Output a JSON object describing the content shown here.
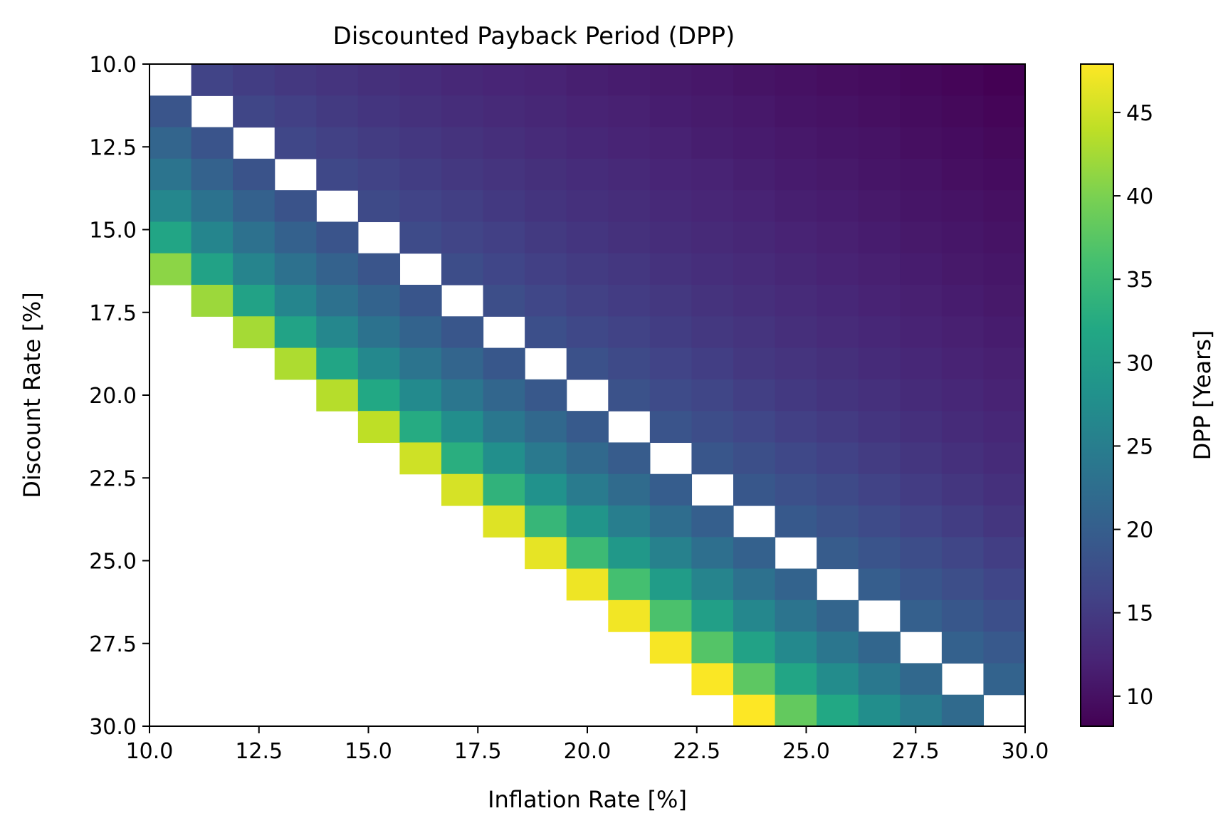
{
  "chart_data": {
    "type": "heatmap",
    "title": "Discounted Payback Period (DPP)",
    "xlabel": "Inflation Rate [%]",
    "ylabel": "Discount Rate [%]",
    "xlim": [
      10.0,
      30.0
    ],
    "ylim": [
      10.0,
      30.0
    ],
    "y_inverted": true,
    "x_ticks": [
      "10.0",
      "12.5",
      "15.0",
      "17.5",
      "20.0",
      "22.5",
      "25.0",
      "27.5",
      "30.0"
    ],
    "y_ticks": [
      "10.0",
      "12.5",
      "15.0",
      "17.5",
      "20.0",
      "22.5",
      "25.0",
      "27.5",
      "30.0"
    ],
    "grid": false,
    "colormap": "viridis",
    "colorbar": {
      "label": "DPP [Years]",
      "min": 8.2,
      "max": 47.9,
      "ticks": [
        "10",
        "15",
        "20",
        "25",
        "30",
        "35",
        "40",
        "45"
      ]
    },
    "matrix": [
      [
        null,
        16.2,
        15.3,
        14.7,
        14.1,
        13.6,
        13.2,
        12.7,
        12.3,
        12.0,
        11.6,
        11.3,
        11.0,
        10.7,
        10.3,
        10.0,
        9.7,
        9.4,
        9.0,
        8.7,
        8.2
      ],
      [
        18.6,
        null,
        16.4,
        15.6,
        14.9,
        14.3,
        13.8,
        13.3,
        12.9,
        12.5,
        12.1,
        11.8,
        11.4,
        11.1,
        10.8,
        10.4,
        10.1,
        9.8,
        9.4,
        9.1,
        8.7
      ],
      [
        21.0,
        18.5,
        null,
        16.6,
        15.8,
        15.1,
        14.5,
        14.0,
        13.5,
        13.0,
        12.6,
        12.2,
        11.9,
        11.5,
        11.2,
        10.8,
        10.5,
        10.2,
        9.8,
        9.5,
        9.1
      ],
      [
        23.5,
        20.6,
        18.4,
        null,
        16.8,
        16.0,
        15.3,
        14.7,
        14.1,
        13.6,
        13.2,
        12.8,
        12.3,
        12.0,
        11.6,
        11.2,
        10.9,
        10.5,
        10.2,
        9.8,
        9.5
      ],
      [
        26.5,
        23.2,
        20.5,
        18.4,
        null,
        17.0,
        16.2,
        15.5,
        14.8,
        14.2,
        13.7,
        13.3,
        12.8,
        12.4,
        12.0,
        11.6,
        11.3,
        10.9,
        10.5,
        10.2,
        9.9
      ],
      [
        31.5,
        26.2,
        23.0,
        20.5,
        18.5,
        null,
        17.2,
        16.3,
        15.6,
        14.9,
        14.3,
        13.8,
        13.3,
        12.9,
        12.5,
        12.1,
        11.7,
        11.3,
        10.9,
        10.6,
        10.2
      ],
      [
        41.0,
        31.0,
        26.0,
        22.9,
        20.6,
        18.6,
        null,
        17.4,
        16.5,
        15.7,
        15.0,
        14.5,
        13.9,
        13.4,
        13.0,
        12.5,
        12.1,
        11.7,
        11.3,
        10.9,
        10.6
      ],
      [
        null,
        42.0,
        31.0,
        26.2,
        23.0,
        20.7,
        18.7,
        null,
        17.6,
        16.6,
        15.8,
        15.2,
        14.6,
        14.0,
        13.5,
        13.0,
        12.6,
        12.1,
        11.7,
        11.3,
        10.9
      ],
      [
        null,
        null,
        42.5,
        31.2,
        26.5,
        23.2,
        20.8,
        18.8,
        null,
        17.8,
        16.8,
        16.0,
        15.3,
        14.6,
        14.1,
        13.5,
        13.0,
        12.6,
        12.1,
        11.7,
        11.3
      ],
      [
        null,
        null,
        null,
        43.0,
        31.5,
        26.7,
        23.4,
        21.0,
        19.0,
        null,
        18.0,
        17.0,
        16.2,
        15.4,
        14.7,
        14.1,
        13.6,
        13.1,
        12.6,
        12.1,
        11.7
      ],
      [
        null,
        null,
        null,
        null,
        43.5,
        32.0,
        27.0,
        23.7,
        21.2,
        19.1,
        null,
        18.2,
        17.2,
        16.4,
        15.5,
        14.8,
        14.2,
        13.7,
        13.1,
        12.6,
        12.1
      ],
      [
        null,
        null,
        null,
        null,
        null,
        44.0,
        32.5,
        27.5,
        24.0,
        21.5,
        19.4,
        null,
        18.5,
        17.5,
        16.6,
        15.7,
        15.0,
        14.3,
        13.7,
        13.1,
        12.6
      ],
      [
        null,
        null,
        null,
        null,
        null,
        null,
        45.0,
        33.0,
        27.8,
        24.3,
        21.7,
        19.6,
        null,
        18.8,
        17.7,
        16.8,
        15.9,
        15.1,
        14.4,
        13.7,
        13.1
      ],
      [
        null,
        null,
        null,
        null,
        null,
        null,
        null,
        45.5,
        33.8,
        28.2,
        24.6,
        22.0,
        19.8,
        null,
        19.0,
        17.9,
        17.0,
        16.0,
        15.2,
        14.4,
        13.7
      ],
      [
        null,
        null,
        null,
        null,
        null,
        null,
        null,
        null,
        46.0,
        34.5,
        28.8,
        25.0,
        22.3,
        20.1,
        null,
        19.3,
        18.2,
        17.2,
        16.2,
        15.3,
        14.4
      ],
      [
        null,
        null,
        null,
        null,
        null,
        null,
        null,
        null,
        null,
        46.5,
        35.2,
        29.3,
        25.5,
        22.7,
        20.4,
        null,
        19.6,
        18.5,
        17.4,
        16.4,
        15.4
      ],
      [
        null,
        null,
        null,
        null,
        null,
        null,
        null,
        null,
        null,
        null,
        47.0,
        36.0,
        30.0,
        26.0,
        23.0,
        20.7,
        null,
        19.9,
        18.7,
        17.6,
        16.5
      ],
      [
        null,
        null,
        null,
        null,
        null,
        null,
        null,
        null,
        null,
        null,
        null,
        47.2,
        36.5,
        30.5,
        26.4,
        23.4,
        21.0,
        null,
        20.2,
        19.0,
        17.8
      ],
      [
        null,
        null,
        null,
        null,
        null,
        null,
        null,
        null,
        null,
        null,
        null,
        null,
        47.5,
        37.2,
        31.0,
        26.8,
        23.8,
        21.3,
        null,
        20.5,
        19.2
      ],
      [
        null,
        null,
        null,
        null,
        null,
        null,
        null,
        null,
        null,
        null,
        null,
        null,
        null,
        47.7,
        37.8,
        31.5,
        27.2,
        24.1,
        21.6,
        null,
        20.8
      ],
      [
        null,
        null,
        null,
        null,
        null,
        null,
        null,
        null,
        null,
        null,
        null,
        null,
        null,
        null,
        47.9,
        38.3,
        32.0,
        27.6,
        24.5,
        21.9,
        null
      ]
    ]
  }
}
